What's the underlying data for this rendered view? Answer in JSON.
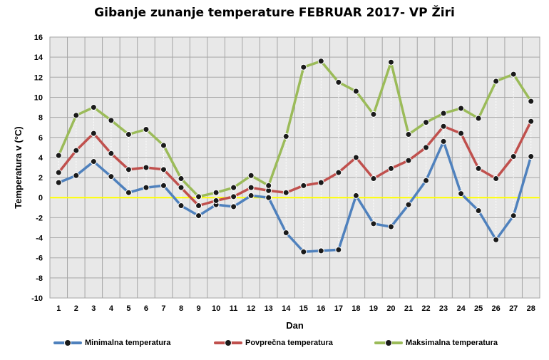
{
  "chart_data": {
    "type": "line",
    "title": "Gibanje zunanje temperature FEBRUAR 2017- VP Žiri",
    "xlabel": "Dan",
    "ylabel": "Temperatura v (°C)",
    "ylim": [
      -10,
      16
    ],
    "yticks": [
      -10,
      -8,
      -6,
      -4,
      -2,
      0,
      2,
      4,
      6,
      8,
      10,
      12,
      14,
      16
    ],
    "x": [
      1,
      2,
      3,
      4,
      5,
      6,
      7,
      8,
      9,
      10,
      11,
      12,
      13,
      14,
      15,
      16,
      17,
      18,
      19,
      20,
      21,
      22,
      23,
      24,
      25,
      26,
      27,
      28
    ],
    "grid": true,
    "legend_position": "bottom",
    "zero_line_color": "#ffff00",
    "series": [
      {
        "name": "Minimalna temperatura",
        "color": "#4f81bd",
        "values": [
          1.5,
          2.2,
          3.6,
          2.1,
          0.5,
          1.0,
          1.2,
          -0.8,
          -1.8,
          -0.7,
          -0.9,
          0.2,
          0.0,
          -3.5,
          -5.4,
          -5.3,
          -5.2,
          0.2,
          -2.6,
          -2.9,
          -0.7,
          1.7,
          5.6,
          0.4,
          -1.3,
          -4.2,
          -1.8,
          4.1
        ]
      },
      {
        "name": "Povprečna temperatura",
        "color": "#c0504d",
        "values": [
          2.5,
          4.7,
          6.4,
          4.4,
          2.8,
          3.0,
          2.8,
          1.0,
          -0.8,
          -0.3,
          0.1,
          1.0,
          0.7,
          0.5,
          1.2,
          1.5,
          2.5,
          4.0,
          1.9,
          2.9,
          3.7,
          5.0,
          7.1,
          6.4,
          2.9,
          1.9,
          4.1,
          7.6
        ]
      },
      {
        "name": "Maksimalna temperatura",
        "color": "#9bbb59",
        "values": [
          4.2,
          8.2,
          9.0,
          7.7,
          6.3,
          6.8,
          5.2,
          1.9,
          0.1,
          0.5,
          1.0,
          2.2,
          1.2,
          6.1,
          13.0,
          13.6,
          11.5,
          10.6,
          8.3,
          13.5,
          6.3,
          7.5,
          8.4,
          8.9,
          7.9,
          11.6,
          12.3,
          9.6
        ]
      }
    ]
  }
}
